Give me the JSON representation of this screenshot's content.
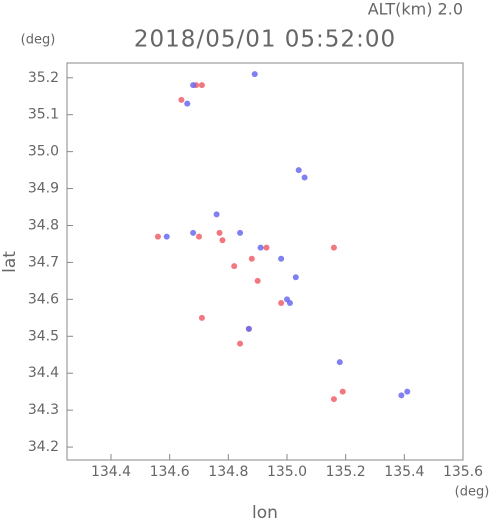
{
  "chart_data": {
    "type": "scatter",
    "title": "2018/05/01 05:52:00",
    "subtitle": "ALT(km) 2.0",
    "x_label": "lon",
    "y_label": "lat",
    "x_unit": "(deg)",
    "y_unit": "(deg)",
    "xlim": [
      134.25,
      135.6
    ],
    "ylim": [
      34.165,
      35.24
    ],
    "xticks": [
      134.4,
      134.6,
      134.8,
      {
        "value": 135.0,
        "label": "135.0"
      },
      135.2,
      135.4,
      135.6
    ],
    "yticks": [
      34.2,
      34.3,
      34.4,
      34.5,
      34.6,
      34.7,
      34.8,
      34.9,
      {
        "value": 35.0,
        "label": "35.0"
      },
      35.1,
      35.2
    ],
    "series": [
      {
        "color": "#f0606a",
        "x": [
          134.69,
          134.64,
          134.71,
          134.56,
          134.7,
          134.78,
          134.82,
          134.93,
          134.88,
          134.98,
          134.9,
          134.71,
          134.87,
          134.84,
          135.16,
          135.16,
          135.19,
          134.77
        ],
        "y": [
          35.18,
          35.14,
          35.18,
          34.77,
          34.77,
          34.76,
          34.69,
          34.74,
          34.71,
          34.59,
          34.65,
          34.55,
          34.52,
          34.48,
          34.74,
          34.33,
          34.35,
          34.78
        ]
      },
      {
        "color": "#6a6af0",
        "x": [
          134.68,
          134.66,
          134.89,
          134.68,
          134.84,
          134.91,
          134.98,
          135.03,
          135.0,
          135.04,
          135.06,
          135.01,
          134.87,
          135.39,
          135.41,
          135.18,
          134.59,
          134.76
        ],
        "y": [
          35.18,
          35.13,
          35.21,
          34.78,
          34.78,
          34.74,
          34.71,
          34.66,
          34.6,
          34.95,
          34.93,
          34.59,
          34.52,
          34.34,
          34.35,
          34.43,
          34.77,
          34.83
        ]
      }
    ]
  }
}
